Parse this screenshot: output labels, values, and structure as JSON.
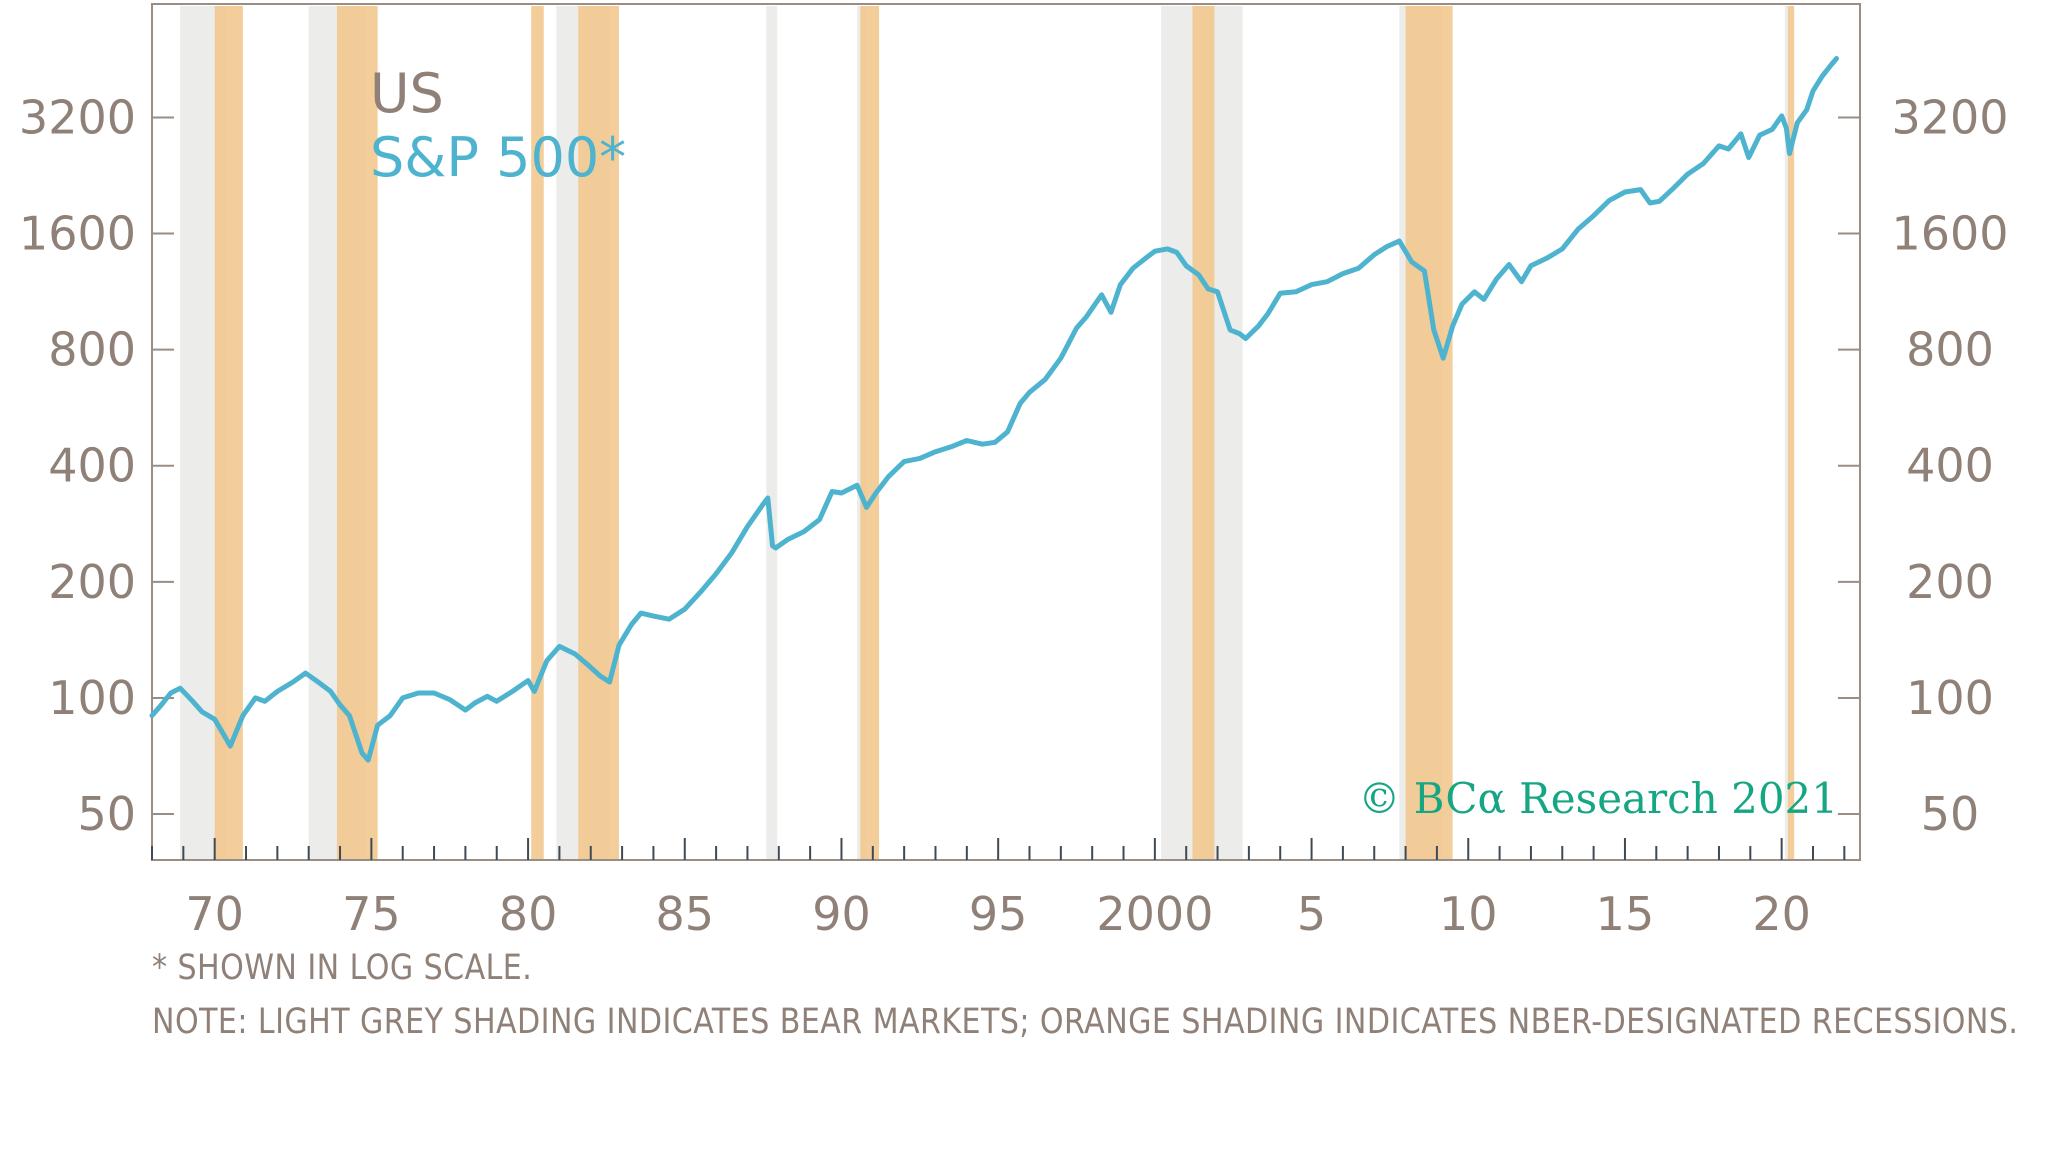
{
  "chart_data": {
    "type": "line",
    "title": "US",
    "subtitle": "S&P 500*",
    "y_scale": "log",
    "ylim": [
      38,
      6300
    ],
    "xlim": [
      1968.0,
      2022.5
    ],
    "y_ticks": [
      50,
      100,
      200,
      400,
      800,
      1600,
      3200
    ],
    "y_tick_labels": [
      "50",
      "100",
      "200",
      "400",
      "800",
      "1600",
      "3200"
    ],
    "x_ticks": [
      1970,
      1975,
      1980,
      1985,
      1990,
      1995,
      2000,
      2005,
      2010,
      2015,
      2020
    ],
    "x_tick_labels": [
      "70",
      "75",
      "80",
      "85",
      "90",
      "95",
      "2000",
      "5",
      "10",
      "15",
      "20"
    ],
    "series": [
      {
        "name": "S&P 500",
        "color": "#4db3cf",
        "x": [
          1968.0,
          1968.3,
          1968.6,
          1968.9,
          1969.3,
          1969.6,
          1970.0,
          1970.3,
          1970.5,
          1970.9,
          1971.3,
          1971.6,
          1972.0,
          1972.5,
          1972.9,
          1973.3,
          1973.7,
          1974.0,
          1974.3,
          1974.7,
          1974.9,
          1975.2,
          1975.6,
          1976.0,
          1976.5,
          1977.0,
          1977.5,
          1978.0,
          1978.3,
          1978.7,
          1979.0,
          1979.5,
          1980.0,
          1980.2,
          1980.6,
          1981.0,
          1981.5,
          1981.9,
          1982.3,
          1982.6,
          1982.9,
          1983.3,
          1983.6,
          1984.0,
          1984.5,
          1985.0,
          1985.5,
          1986.0,
          1986.5,
          1987.0,
          1987.5,
          1987.65,
          1987.8,
          1987.9,
          1988.3,
          1988.8,
          1989.3,
          1989.7,
          1990.0,
          1990.5,
          1990.8,
          1991.1,
          1991.5,
          1992.0,
          1992.5,
          1993.0,
          1993.5,
          1994.0,
          1994.5,
          1994.9,
          1995.3,
          1995.7,
          1996.0,
          1996.5,
          1997.0,
          1997.5,
          1997.8,
          1998.3,
          1998.6,
          1998.9,
          1999.3,
          1999.7,
          2000.0,
          2000.4,
          2000.7,
          2001.0,
          2001.4,
          2001.7,
          2002.0,
          2002.4,
          2002.7,
          2002.9,
          2003.3,
          2003.6,
          2004.0,
          2004.5,
          2005.0,
          2005.5,
          2006.0,
          2006.5,
          2007.0,
          2007.4,
          2007.8,
          2008.2,
          2008.6,
          2008.9,
          2009.2,
          2009.5,
          2009.8,
          2010.2,
          2010.5,
          2010.9,
          2011.3,
          2011.7,
          2012.0,
          2012.5,
          2013.0,
          2013.5,
          2014.0,
          2014.5,
          2015.0,
          2015.5,
          2015.8,
          2016.1,
          2016.5,
          2017.0,
          2017.5,
          2018.0,
          2018.3,
          2018.7,
          2018.95,
          2019.3,
          2019.7,
          2020.0,
          2020.15,
          2020.25,
          2020.5,
          2020.8,
          2021.0,
          2021.3,
          2021.6,
          2021.75
        ],
        "values": [
          90,
          96,
          103,
          106,
          98,
          92,
          88,
          80,
          75,
          90,
          100,
          98,
          104,
          110,
          116,
          110,
          104,
          96,
          90,
          72,
          69,
          85,
          90,
          100,
          103,
          103,
          99,
          93,
          97,
          101,
          98,
          104,
          111,
          104,
          125,
          136,
          130,
          122,
          114,
          110,
          137,
          155,
          166,
          163,
          160,
          170,
          188,
          210,
          238,
          278,
          318,
          330,
          248,
          245,
          258,
          270,
          290,
          343,
          340,
          356,
          312,
          340,
          375,
          410,
          418,
          435,
          448,
          465,
          455,
          460,
          490,
          580,
          620,
          670,
          760,
          910,
          970,
          1110,
          1000,
          1180,
          1300,
          1380,
          1440,
          1460,
          1430,
          1320,
          1250,
          1150,
          1130,
          900,
          880,
          855,
          920,
          990,
          1120,
          1130,
          1180,
          1200,
          1260,
          1300,
          1410,
          1480,
          1530,
          1350,
          1280,
          900,
          760,
          920,
          1050,
          1130,
          1080,
          1220,
          1330,
          1200,
          1320,
          1380,
          1460,
          1640,
          1780,
          1950,
          2050,
          2080,
          1920,
          1940,
          2080,
          2280,
          2430,
          2700,
          2650,
          2900,
          2520,
          2880,
          2980,
          3230,
          3000,
          2580,
          3100,
          3350,
          3750,
          4100,
          4400,
          4550
        ]
      }
    ],
    "bear_markets": [
      [
        1968.9,
        1970.4
      ],
      [
        1973.0,
        1974.8
      ],
      [
        1980.9,
        1982.6
      ],
      [
        1987.6,
        1987.95
      ],
      [
        1990.5,
        1990.8
      ],
      [
        2000.2,
        2002.8
      ],
      [
        2007.8,
        2009.2
      ],
      [
        2020.1,
        2020.25
      ]
    ],
    "recessions": [
      [
        1970.0,
        1970.9
      ],
      [
        1973.9,
        1975.2
      ],
      [
        1980.1,
        1980.5
      ],
      [
        1981.6,
        1982.9
      ],
      [
        1990.6,
        1991.2
      ],
      [
        2001.2,
        2001.9
      ],
      [
        2008.0,
        2009.5
      ],
      [
        2020.2,
        2020.4
      ]
    ],
    "bear_color": "#ececea",
    "recession_color": "#f3c98f"
  },
  "copyright": "© BCα Research 2021",
  "footnote": "* SHOWN IN LOG SCALE.",
  "note": "NOTE: LIGHT GREY SHADING INDICATES BEAR MARKETS; ORANGE SHADING INDICATES NBER-DESIGNATED RECESSIONS."
}
